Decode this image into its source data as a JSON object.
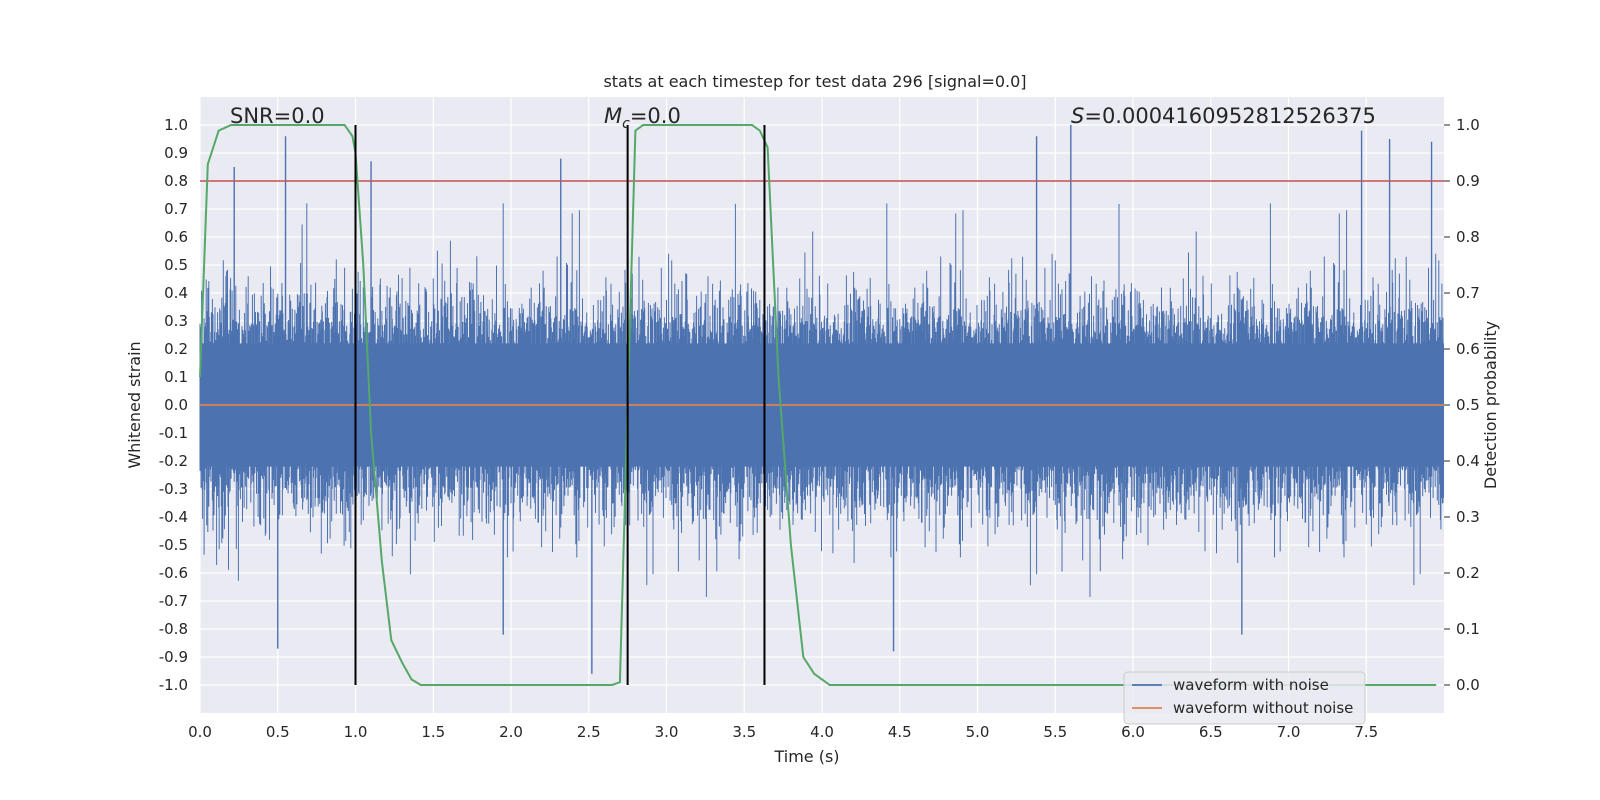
{
  "chart_data": {
    "type": "line",
    "title": "stats at each timestep for test data 296 [signal=0.0]",
    "xlabel": "Time (s)",
    "ylabel_left": "Whitened strain",
    "ylabel_right": "Detection probability",
    "xlim": [
      0.0,
      8.0
    ],
    "ylim_left": [
      -1.1,
      1.1
    ],
    "ylim_right": [
      -0.05,
      1.05
    ],
    "grid": true,
    "x_ticks": [
      "0.0",
      "0.5",
      "1.0",
      "1.5",
      "2.0",
      "2.5",
      "3.0",
      "3.5",
      "4.0",
      "4.5",
      "5.0",
      "5.5",
      "6.0",
      "6.5",
      "7.0",
      "7.5"
    ],
    "y_ticks_left": [
      "1.0",
      "0.9",
      "0.8",
      "0.7",
      "0.6",
      "0.5",
      "0.4",
      "0.3",
      "0.2",
      "0.1",
      "0.0",
      "-0.1",
      "-0.2",
      "-0.3",
      "-0.4",
      "-0.5",
      "-0.6",
      "-0.7",
      "-0.8",
      "-0.9",
      "-1.0"
    ],
    "y_ticks_right": [
      "1.0",
      "0.9",
      "0.8",
      "0.7",
      "0.6",
      "0.5",
      "0.4",
      "0.3",
      "0.2",
      "0.1",
      "0.0"
    ],
    "annotations": {
      "snr": "SNR=0.0",
      "mc_symbol": "M",
      "mc_sub": "c",
      "mc_value": "=0.0",
      "s_symbol": "S",
      "s_value": "=0.00041609528125263​75"
    },
    "series": [
      {
        "name": "waveform with noise",
        "axis": "left",
        "color": "#4c72b0",
        "description": "dense whitened strain noise trace",
        "envelope_peaks": [
          {
            "x": 0.22,
            "y": 0.85
          },
          {
            "x": 0.55,
            "y": 0.96
          },
          {
            "x": 1.1,
            "y": 0.87
          },
          {
            "x": 2.32,
            "y": 0.88
          },
          {
            "x": 5.38,
            "y": 0.96
          },
          {
            "x": 5.6,
            "y": 1.0
          },
          {
            "x": 7.47,
            "y": 0.98
          },
          {
            "x": 7.65,
            "y": 0.95
          },
          {
            "x": 7.92,
            "y": 0.94
          },
          {
            "x": 0.5,
            "y": -0.87
          },
          {
            "x": 1.95,
            "y": -0.82
          },
          {
            "x": 2.52,
            "y": -0.96
          },
          {
            "x": 4.46,
            "y": -0.88
          },
          {
            "x": 6.7,
            "y": -0.82
          }
        ]
      },
      {
        "name": "waveform without noise",
        "axis": "left",
        "color": "#dd8452",
        "x": [
          0.0,
          8.0
        ],
        "y": [
          0.0,
          0.0
        ]
      },
      {
        "name": "detection probability",
        "axis": "right",
        "color": "#55a868",
        "x": [
          0.0,
          0.05,
          0.12,
          0.2,
          0.3,
          0.5,
          0.7,
          0.85,
          0.93,
          0.98,
          1.0,
          1.05,
          1.1,
          1.17,
          1.23,
          1.3,
          1.36,
          1.42,
          1.5,
          2.0,
          2.55,
          2.65,
          2.7,
          2.75,
          2.8,
          2.85,
          3.0,
          3.3,
          3.55,
          3.6,
          3.65,
          3.72,
          3.8,
          3.88,
          3.95,
          4.0,
          4.05,
          4.5,
          5.0,
          6.0,
          7.0,
          7.95
        ],
        "y": [
          0.55,
          0.93,
          0.99,
          1.0,
          1.0,
          1.0,
          1.0,
          1.0,
          1.0,
          0.98,
          0.95,
          0.75,
          0.45,
          0.22,
          0.08,
          0.04,
          0.01,
          0.0,
          0.0,
          0.0,
          0.0,
          0.0,
          0.005,
          0.5,
          0.99,
          1.0,
          1.0,
          1.0,
          1.0,
          0.99,
          0.96,
          0.55,
          0.25,
          0.05,
          0.02,
          0.01,
          0.0,
          0.0,
          0.0,
          0.0,
          0.0,
          0.0
        ]
      }
    ],
    "horizontal_lines": [
      {
        "axis": "left",
        "y": 0.8,
        "color": "#c44e52"
      }
    ],
    "vertical_lines": [
      {
        "x": 1.0,
        "y_from": -0.05,
        "y_to": 1.0,
        "axis": "right",
        "color": "#000000"
      },
      {
        "x": 2.75,
        "y_from": -0.05,
        "y_to": 1.0,
        "axis": "right",
        "color": "#000000"
      },
      {
        "x": 3.63,
        "y_from": -0.05,
        "y_to": 1.0,
        "axis": "right",
        "color": "#000000"
      }
    ],
    "legend": {
      "position": "bottom-right",
      "entries": [
        {
          "label": "waveform with noise",
          "color": "#4c72b0"
        },
        {
          "label": "waveform without noise",
          "color": "#dd8452"
        }
      ]
    },
    "colors": {
      "plot_background": "#eaeaf2",
      "grid": "#ffffff",
      "noise": "#4c72b0",
      "clean": "#dd8452",
      "probability": "#55a868",
      "threshold": "#c44e52"
    }
  }
}
